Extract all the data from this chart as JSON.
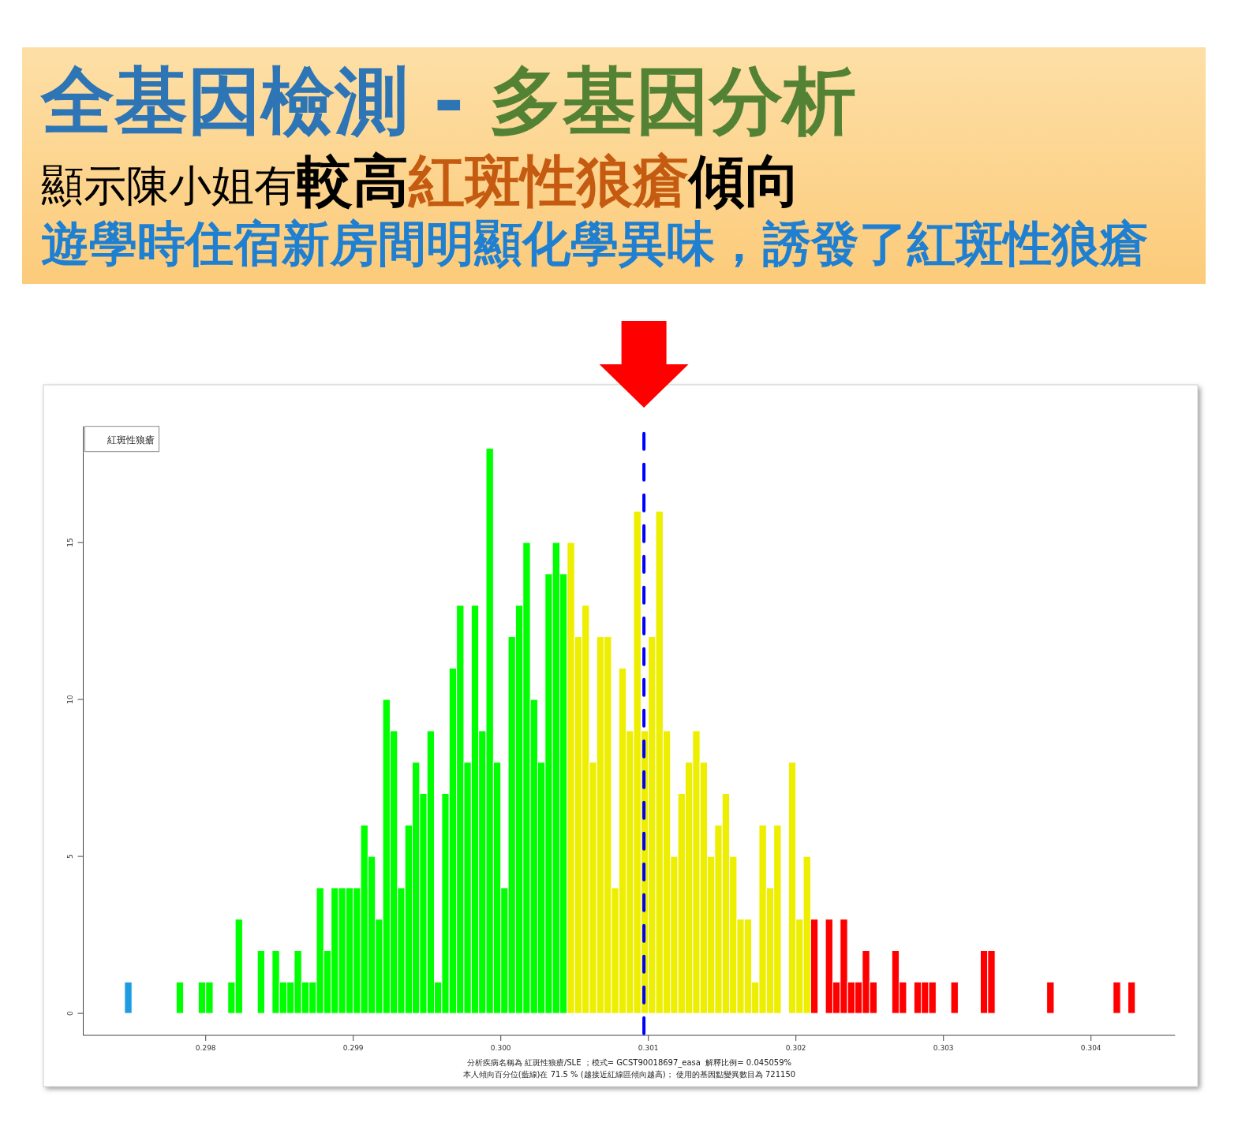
{
  "chart_data": {
    "type": "histogram",
    "title": "全基因檢測 - 多基因分析",
    "subtitle": "顯示陳小姐有較高紅斑性狼瘡傾向",
    "bins": [
      0.29745,
      0.2975,
      0.29755,
      0.2976,
      0.29765,
      0.2977,
      0.29775,
      0.2978,
      0.29785,
      0.2979,
      0.29795,
      0.298,
      0.29805,
      0.2981,
      0.29815,
      0.2982,
      0.29825,
      0.2983,
      0.29835,
      0.2984,
      0.29845,
      0.2985,
      0.29855,
      0.2986,
      0.29865,
      0.2987,
      0.29875,
      0.2988,
      0.29885,
      0.2989,
      0.29895,
      0.299,
      0.29905,
      0.2991,
      0.29915,
      0.2992,
      0.29925,
      0.2993,
      0.29935,
      0.2994,
      0.29945,
      0.2995,
      0.29955,
      0.2996,
      0.29965,
      0.2997,
      0.29975,
      0.2998,
      0.29985,
      0.2999,
      0.29995,
      0.3,
      0.30005,
      0.3001,
      0.30015,
      0.3002,
      0.30025,
      0.3003,
      0.30035,
      0.3004,
      0.30045,
      0.3005,
      0.30055,
      0.3006,
      0.30065,
      0.3007,
      0.30075,
      0.3008,
      0.30085,
      0.3009,
      0.30095,
      0.301,
      0.30105,
      0.3011,
      0.30115,
      0.3012,
      0.30125,
      0.3013,
      0.30135,
      0.3014,
      0.30145,
      0.3015,
      0.30155,
      0.3016,
      0.30165,
      0.3017,
      0.30175,
      0.3018,
      0.30185,
      0.3019,
      0.30195,
      0.302,
      0.30205,
      0.3021,
      0.30215,
      0.3022,
      0.30225,
      0.3023,
      0.30235,
      0.3024,
      0.30245,
      0.3025,
      0.30255,
      0.3026,
      0.30265,
      0.3027,
      0.30275,
      0.3028,
      0.30285,
      0.3029,
      0.30295,
      0.303,
      0.30305,
      0.3031,
      0.30315,
      0.3032,
      0.30325,
      0.3033,
      0.30335,
      0.3034,
      0.30345,
      0.3035,
      0.30355,
      0.3036,
      0.30365,
      0.3037,
      0.30375,
      0.3038,
      0.30385,
      0.3039,
      0.30395,
      0.304,
      0.30405,
      0.3041,
      0.30415,
      0.3042,
      0.30425,
      0.3043
    ],
    "values": [
      1,
      0,
      0,
      0,
      0,
      0,
      0,
      1,
      0,
      0,
      1,
      1,
      0,
      0,
      1,
      3,
      0,
      0,
      2,
      0,
      2,
      1,
      1,
      2,
      1,
      1,
      4,
      2,
      4,
      4,
      4,
      4,
      6,
      5,
      3,
      10,
      9,
      4,
      6,
      8,
      7,
      9,
      1,
      7,
      11,
      13,
      8,
      13,
      9,
      18,
      8,
      4,
      12,
      13,
      15,
      10,
      8,
      14,
      15,
      14,
      15,
      12,
      13,
      8,
      12,
      12,
      4,
      11,
      9,
      16,
      9,
      12,
      16,
      9,
      5,
      7,
      8,
      9,
      8,
      5,
      6,
      7,
      5,
      3,
      3,
      1,
      6,
      4,
      6,
      0,
      8,
      3,
      5,
      3,
      0,
      3,
      1,
      3,
      1,
      1,
      2,
      1,
      0,
      0,
      2,
      1,
      0,
      1,
      1,
      1,
      0,
      0,
      1,
      0,
      0,
      0,
      2,
      2,
      0,
      0,
      0,
      0,
      0,
      0,
      0,
      1,
      0,
      0,
      0,
      0,
      0,
      0,
      0,
      0,
      1,
      0,
      1
    ],
    "colors": [
      "#1f9be0",
      "#00ff00",
      "#00ff00",
      "#00ff00",
      "#00ff00",
      "#00ff00",
      "#00ff00",
      "#00ff00",
      "#00ff00",
      "#00ff00",
      "#00ff00",
      "#00ff00",
      "#00ff00",
      "#00ff00",
      "#00ff00",
      "#00ff00",
      "#00ff00",
      "#00ff00",
      "#00ff00",
      "#00ff00",
      "#00ff00",
      "#00ff00",
      "#00ff00",
      "#00ff00",
      "#00ff00",
      "#00ff00",
      "#00ff00",
      "#00ff00",
      "#00ff00",
      "#00ff00",
      "#00ff00",
      "#00ff00",
      "#00ff00",
      "#00ff00",
      "#00ff00",
      "#00ff00",
      "#00ff00",
      "#00ff00",
      "#00ff00",
      "#00ff00",
      "#00ff00",
      "#00ff00",
      "#00ff00",
      "#00ff00",
      "#00ff00",
      "#00ff00",
      "#00ff00",
      "#00ff00",
      "#00ff00",
      "#00ff00",
      "#00ff00",
      "#00ff00",
      "#00ff00",
      "#00ff00",
      "#00ff00",
      "#00ff00",
      "#00ff00",
      "#00ff00",
      "#00ff00",
      "#00ff00",
      "#eeee00",
      "#eeee00",
      "#eeee00",
      "#eeee00",
      "#eeee00",
      "#eeee00",
      "#eeee00",
      "#eeee00",
      "#eeee00",
      "#eeee00",
      "#eeee00",
      "#eeee00",
      "#eeee00",
      "#eeee00",
      "#eeee00",
      "#eeee00",
      "#eeee00",
      "#eeee00",
      "#eeee00",
      "#eeee00",
      "#eeee00",
      "#eeee00",
      "#eeee00",
      "#eeee00",
      "#eeee00",
      "#eeee00",
      "#eeee00",
      "#eeee00",
      "#eeee00",
      "#eeee00",
      "#eeee00",
      "#eeee00",
      "#eeee00",
      "#ff0000",
      "#ff0000",
      "#ff0000",
      "#ff0000",
      "#ff0000",
      "#ff0000",
      "#ff0000",
      "#ff0000",
      "#ff0000",
      "#ff0000",
      "#ff0000",
      "#ff0000",
      "#ff0000",
      "#ff0000",
      "#ff0000",
      "#ff0000",
      "#ff0000",
      "#ff0000",
      "#ff0000",
      "#ff0000",
      "#ff0000",
      "#ff0000",
      "#ff0000",
      "#ff0000",
      "#ff0000",
      "#ff0000",
      "#ff0000",
      "#ff0000",
      "#ff0000",
      "#ff0000",
      "#ff0000",
      "#ff0000",
      "#ff0000",
      "#ff0000",
      "#ff0000",
      "#ff0000",
      "#ff0000",
      "#ff0000",
      "#ff0000",
      "#ff0000",
      "#ff0000",
      "#ff0000",
      "#ff0000",
      "#ff0000"
    ],
    "xlim": [
      0.29717,
      0.30457
    ],
    "ylim": [
      -0.7,
      18.7
    ],
    "xticks": [
      0.298,
      0.299,
      {
        "value": 0.3,
        "label": "0.300"
      },
      0.301,
      0.302,
      0.303,
      0.304
    ],
    "yticks": [
      0,
      5,
      10,
      15
    ],
    "ref_lines": [
      {
        "axis": "x",
        "value": 0.30097,
        "color": "#0000ff",
        "line_style": "dashed"
      }
    ],
    "annotations": [
      "遊學時住宿新房間明顯化學異味，誘發了紅斑性狼瘡",
      "紅斑性狼瘡",
      "分析疾病名稱為 紅斑性狼瘡/SLE ；模式= GCST90018697_easa  解釋比例= 0.045059%",
      "本人傾向百分位(藍線)在 71.5 % (越接近紅線區傾向越高)； 使用的基因點變異數目為 721150"
    ]
  }
}
